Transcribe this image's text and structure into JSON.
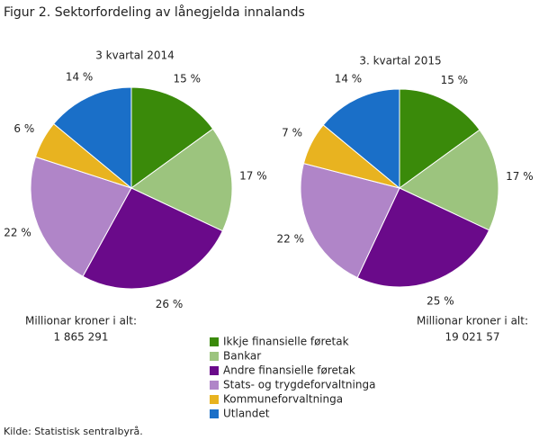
{
  "title": "Figur 2. Sektorfordeling av lånegjelda innalands",
  "source": "Kilde: Statistisk sentralbyrå.",
  "legend": {
    "names": [
      "Ikkje finansielle føretak",
      "Bankar",
      "Andre finansielle føretak",
      "Stats- og trygdeforvaltninga",
      "Kommuneforvaltninga",
      "Utlandet"
    ],
    "colors": [
      "#3a8a0a",
      "#9cc47e",
      "#6a0a8a",
      "#b085c8",
      "#e8b320",
      "#1a6fc8"
    ]
  },
  "chart_data": [
    {
      "type": "pie",
      "title": "3 kvartal 2014",
      "values": [
        15,
        17,
        26,
        22,
        6,
        14
      ],
      "value_labels": [
        "15 %",
        "17 %",
        "26 %",
        "22 %",
        "6 %",
        "14 %"
      ],
      "total_label": "Millionar kroner i alt:",
      "total": "1 865 291"
    },
    {
      "type": "pie",
      "title": "3. kvartal 2015",
      "values": [
        15,
        17,
        25,
        22,
        7,
        14
      ],
      "value_labels": [
        "15 %",
        "17 %",
        "25 %",
        "22 %",
        "7 %",
        "14 %"
      ],
      "total_label": "Millionar kroner i alt:",
      "total": "19 021 57"
    }
  ]
}
